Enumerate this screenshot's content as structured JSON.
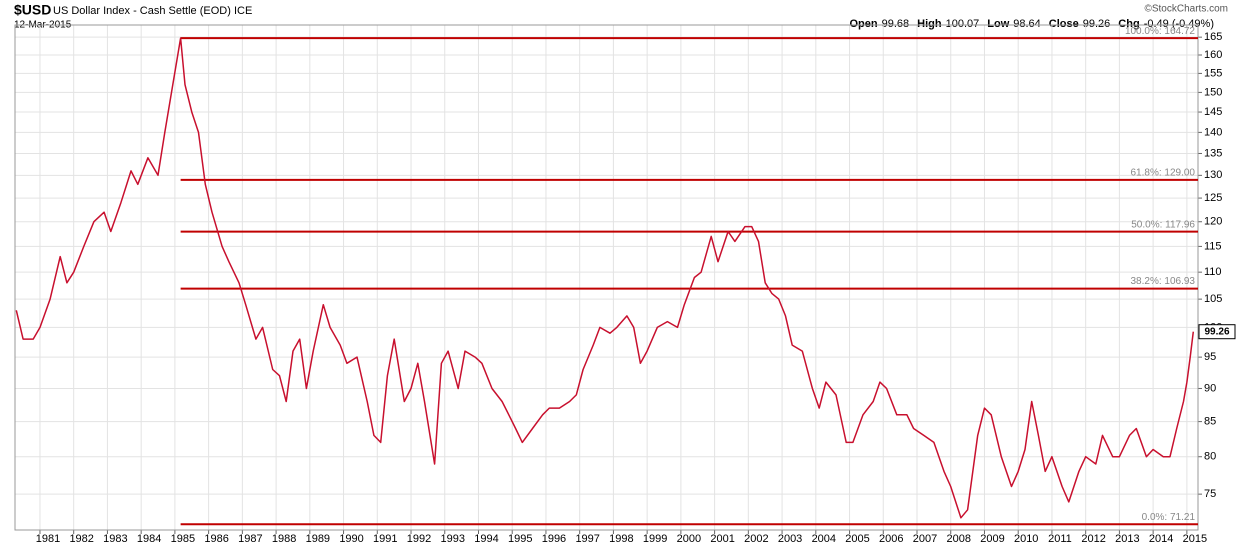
{
  "chart_data": {
    "type": "line",
    "symbol": "$USD",
    "title": "US Dollar Index - Cash Settle (EOD) ICE",
    "date": "12-Mar-2015",
    "source": "©StockCharts.com",
    "quote": [
      {
        "label": "Open",
        "value": 99.68
      },
      {
        "label": "High",
        "value": 100.07
      },
      {
        "label": "Low",
        "value": 98.64
      },
      {
        "label": "Close",
        "value": 99.26
      },
      {
        "label": "Chg",
        "value": "-0.49 (-0.49%)"
      }
    ],
    "color": "#c8102e",
    "log": true,
    "grid": true,
    "x": [
      1980.3,
      1980.5,
      1980.8,
      1981.0,
      1981.3,
      1981.6,
      1981.8,
      1982.0,
      1982.3,
      1982.6,
      1982.9,
      1983.1,
      1983.4,
      1983.7,
      1983.9,
      1984.2,
      1984.5,
      1984.7,
      1984.9,
      1985.17,
      1985.3,
      1985.5,
      1985.7,
      1985.9,
      1986.1,
      1986.4,
      1986.6,
      1986.9,
      1987.1,
      1987.4,
      1987.6,
      1987.9,
      1988.1,
      1988.3,
      1988.5,
      1988.7,
      1988.9,
      1989.1,
      1989.4,
      1989.6,
      1989.9,
      1990.1,
      1990.4,
      1990.7,
      1990.9,
      1991.1,
      1991.3,
      1991.5,
      1991.8,
      1992.0,
      1992.2,
      1992.4,
      1992.7,
      1992.9,
      1993.1,
      1993.4,
      1993.6,
      1993.9,
      1994.1,
      1994.4,
      1994.7,
      1994.9,
      1995.1,
      1995.3,
      1995.6,
      1995.9,
      1996.1,
      1996.4,
      1996.7,
      1996.9,
      1997.1,
      1997.4,
      1997.6,
      1997.9,
      1998.1,
      1998.4,
      1998.6,
      1998.8,
      1999.0,
      1999.3,
      1999.6,
      1999.9,
      2000.1,
      2000.4,
      2000.6,
      2000.9,
      2001.1,
      2001.4,
      2001.6,
      2001.9,
      2002.1,
      2002.3,
      2002.5,
      2002.7,
      2002.9,
      2003.1,
      2003.3,
      2003.6,
      2003.9,
      2004.1,
      2004.3,
      2004.6,
      2004.9,
      2005.1,
      2005.4,
      2005.7,
      2005.9,
      2006.1,
      2006.4,
      2006.7,
      2006.9,
      2007.2,
      2007.5,
      2007.8,
      2008.0,
      2008.3,
      2008.5,
      2008.8,
      2009.0,
      2009.2,
      2009.5,
      2009.8,
      2010.0,
      2010.2,
      2010.4,
      2010.6,
      2010.8,
      2011.0,
      2011.3,
      2011.5,
      2011.8,
      2012.0,
      2012.3,
      2012.5,
      2012.8,
      2013.0,
      2013.3,
      2013.5,
      2013.8,
      2014.0,
      2014.3,
      2014.5,
      2014.7,
      2014.9,
      2015.0,
      2015.1,
      2015.19
    ],
    "values": [
      103,
      98,
      98,
      100,
      105,
      113,
      108,
      110,
      115,
      120,
      122,
      118,
      124,
      131,
      128,
      134,
      130,
      140,
      150,
      164.72,
      152,
      145,
      140,
      128,
      122,
      115,
      112,
      108,
      104,
      98,
      100,
      93,
      92,
      88,
      96,
      98,
      90,
      96,
      104,
      100,
      97,
      94,
      95,
      88,
      83,
      82,
      92,
      98,
      88,
      90,
      94,
      88,
      79,
      94,
      96,
      90,
      96,
      95,
      94,
      90,
      88,
      86,
      84,
      82,
      84,
      86,
      87,
      87,
      88,
      89,
      93,
      97,
      100,
      99,
      100,
      102,
      100,
      94,
      96,
      100,
      101,
      100,
      104,
      109,
      110,
      117,
      112,
      118,
      116,
      119,
      119,
      116,
      108,
      106,
      105,
      102,
      97,
      96,
      90,
      87,
      91,
      89,
      82,
      82,
      86,
      88,
      91,
      90,
      86,
      86,
      84,
      83,
      82,
      78,
      76,
      72,
      73,
      83,
      87,
      86,
      80,
      76,
      78,
      81,
      88,
      83,
      78,
      80,
      76,
      74,
      78,
      80,
      79,
      83,
      80,
      80,
      83,
      84,
      80,
      81,
      80,
      80,
      84,
      88,
      91,
      95,
      99.26
    ],
    "xlim": [
      1980.26,
      2015.33
    ],
    "xticks": [
      1981,
      1982,
      1983,
      1984,
      1985,
      1986,
      1987,
      1988,
      1989,
      1990,
      1991,
      1992,
      1993,
      1994,
      1995,
      1996,
      1997,
      1998,
      1999,
      2000,
      2001,
      2002,
      2003,
      2004,
      2005,
      2006,
      2007,
      2008,
      2009,
      2010,
      2011,
      2012,
      2013,
      2014,
      2015
    ],
    "ylim": [
      70.5,
      168.5
    ],
    "yticks": [
      75,
      80,
      85,
      90,
      95,
      100,
      105,
      110,
      115,
      120,
      125,
      130,
      135,
      140,
      145,
      150,
      155,
      160,
      165
    ],
    "levels": [
      {
        "label": "100.0%: 164.72",
        "value": 164.72
      },
      {
        "label": "61.8%: 129.00",
        "value": 129.0
      },
      {
        "label": "50.0%: 117.96",
        "value": 117.96
      },
      {
        "label": "38.2%: 106.93",
        "value": 106.93
      },
      {
        "label": "0.0%: 71.21",
        "value": 71.21
      }
    ],
    "levels_start": 1985.17
  }
}
